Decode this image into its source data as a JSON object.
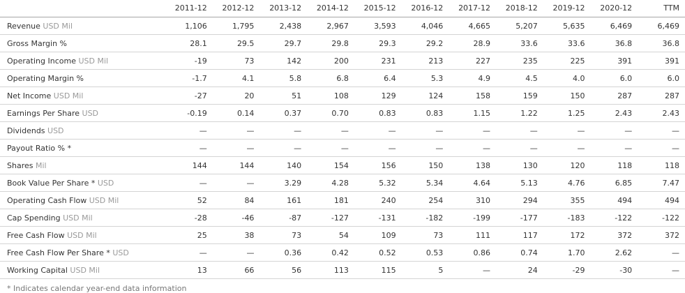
{
  "table": {
    "columns": [
      "2011-12",
      "2012-12",
      "2013-12",
      "2014-12",
      "2015-12",
      "2016-12",
      "2017-12",
      "2018-12",
      "2019-12",
      "2020-12",
      "TTM"
    ],
    "rows": [
      {
        "label": "Revenue",
        "unit": "USD Mil",
        "values": [
          "1,106",
          "1,795",
          "2,438",
          "2,967",
          "3,593",
          "4,046",
          "4,665",
          "5,207",
          "5,635",
          "6,469",
          "6,469"
        ]
      },
      {
        "label": "Gross Margin %",
        "unit": "",
        "values": [
          "28.1",
          "29.5",
          "29.7",
          "29.8",
          "29.3",
          "29.2",
          "28.9",
          "33.6",
          "33.6",
          "36.8",
          "36.8"
        ]
      },
      {
        "label": "Operating Income",
        "unit": "USD Mil",
        "values": [
          "-19",
          "73",
          "142",
          "200",
          "231",
          "213",
          "227",
          "235",
          "225",
          "391",
          "391"
        ]
      },
      {
        "label": "Operating Margin %",
        "unit": "",
        "values": [
          "-1.7",
          "4.1",
          "5.8",
          "6.8",
          "6.4",
          "5.3",
          "4.9",
          "4.5",
          "4.0",
          "6.0",
          "6.0"
        ]
      },
      {
        "label": "Net Income",
        "unit": "USD Mil",
        "values": [
          "-27",
          "20",
          "51",
          "108",
          "129",
          "124",
          "158",
          "159",
          "150",
          "287",
          "287"
        ]
      },
      {
        "label": "Earnings Per Share",
        "unit": "USD",
        "values": [
          "-0.19",
          "0.14",
          "0.37",
          "0.70",
          "0.83",
          "0.83",
          "1.15",
          "1.22",
          "1.25",
          "2.43",
          "2.43"
        ]
      },
      {
        "label": "Dividends",
        "unit": "USD",
        "values": [
          "—",
          "—",
          "—",
          "—",
          "—",
          "—",
          "—",
          "—",
          "—",
          "—",
          "—"
        ]
      },
      {
        "label": "Payout Ratio % *",
        "unit": "",
        "values": [
          "—",
          "—",
          "—",
          "—",
          "—",
          "—",
          "—",
          "—",
          "—",
          "—",
          "—"
        ]
      },
      {
        "label": "Shares",
        "unit": "Mil",
        "values": [
          "144",
          "144",
          "140",
          "154",
          "156",
          "150",
          "138",
          "130",
          "120",
          "118",
          "118"
        ]
      },
      {
        "label": "Book Value Per Share *",
        "unit": "USD",
        "values": [
          "—",
          "—",
          "3.29",
          "4.28",
          "5.32",
          "5.34",
          "4.64",
          "5.13",
          "4.76",
          "6.85",
          "7.47"
        ]
      },
      {
        "label": "Operating Cash Flow",
        "unit": "USD Mil",
        "values": [
          "52",
          "84",
          "161",
          "181",
          "240",
          "254",
          "310",
          "294",
          "355",
          "494",
          "494"
        ]
      },
      {
        "label": "Cap Spending",
        "unit": "USD Mil",
        "values": [
          "-28",
          "-46",
          "-87",
          "-127",
          "-131",
          "-182",
          "-199",
          "-177",
          "-183",
          "-122",
          "-122"
        ]
      },
      {
        "label": "Free Cash Flow",
        "unit": "USD Mil",
        "values": [
          "25",
          "38",
          "73",
          "54",
          "109",
          "73",
          "111",
          "117",
          "172",
          "372",
          "372"
        ]
      },
      {
        "label": "Free Cash Flow Per Share *",
        "unit": "USD",
        "values": [
          "—",
          "—",
          "0.36",
          "0.42",
          "0.52",
          "0.53",
          "0.86",
          "0.74",
          "1.70",
          "2.62",
          "—"
        ]
      },
      {
        "label": "Working Capital",
        "unit": "USD Mil",
        "values": [
          "13",
          "66",
          "56",
          "113",
          "115",
          "5",
          "—",
          "24",
          "-29",
          "-30",
          "—"
        ]
      }
    ],
    "footnote": "* Indicates calendar year-end data information"
  },
  "colors": {
    "text": "#333333",
    "unit": "#999999",
    "row_border": "#d4d4d4",
    "header_border": "#a6a6a6",
    "footnote": "#777777",
    "background": "#ffffff"
  }
}
